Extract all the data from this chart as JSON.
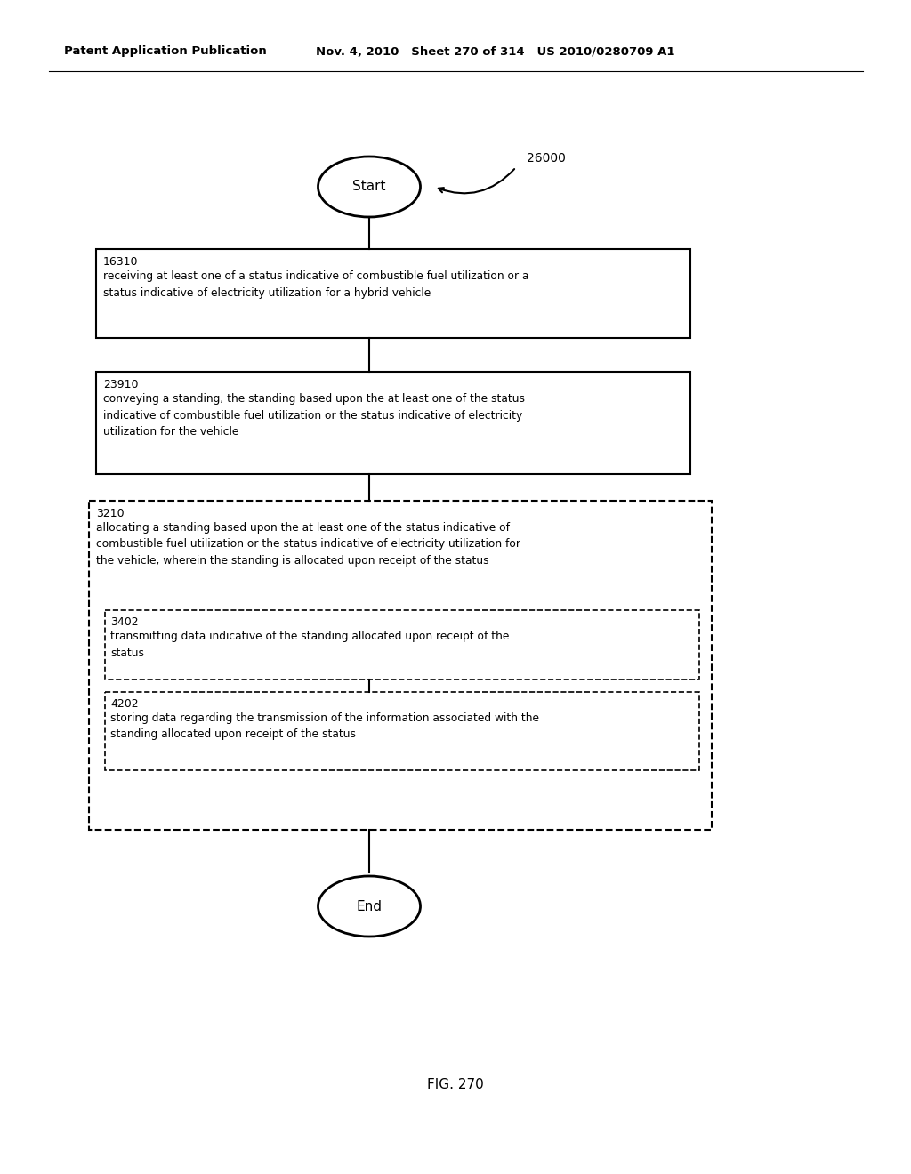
{
  "header_left": "Patent Application Publication",
  "header_mid": "Nov. 4, 2010   Sheet 270 of 314   US 2010/0280709 A1",
  "fig_label": "FIG. 270",
  "diagram_label": "26000",
  "start_label": "Start",
  "end_label": "End",
  "box1_id": "16310",
  "box1_text": "receiving at least one of a status indicative of combustible fuel utilization or a\nstatus indicative of electricity utilization for a hybrid vehicle",
  "box2_id": "23910",
  "box2_text": "conveying a standing, the standing based upon the at least one of the status\nindicative of combustible fuel utilization or the status indicative of electricity\nutilization for the vehicle",
  "outer_dashed_id": "3210",
  "outer_dashed_text": "allocating a standing based upon the at least one of the status indicative of\ncombustible fuel utilization or the status indicative of electricity utilization for\nthe vehicle, wherein the standing is allocated upon receipt of the status",
  "inner_dashed1_id": "3402",
  "inner_dashed1_text": "transmitting data indicative of the standing allocated upon receipt of the\nstatus",
  "inner_dashed2_id": "4202",
  "inner_dashed2_text": "storing data regarding the transmission of the information associated with the\nstanding allocated upon receipt of the status",
  "background_color": "#ffffff",
  "text_color": "#000000"
}
